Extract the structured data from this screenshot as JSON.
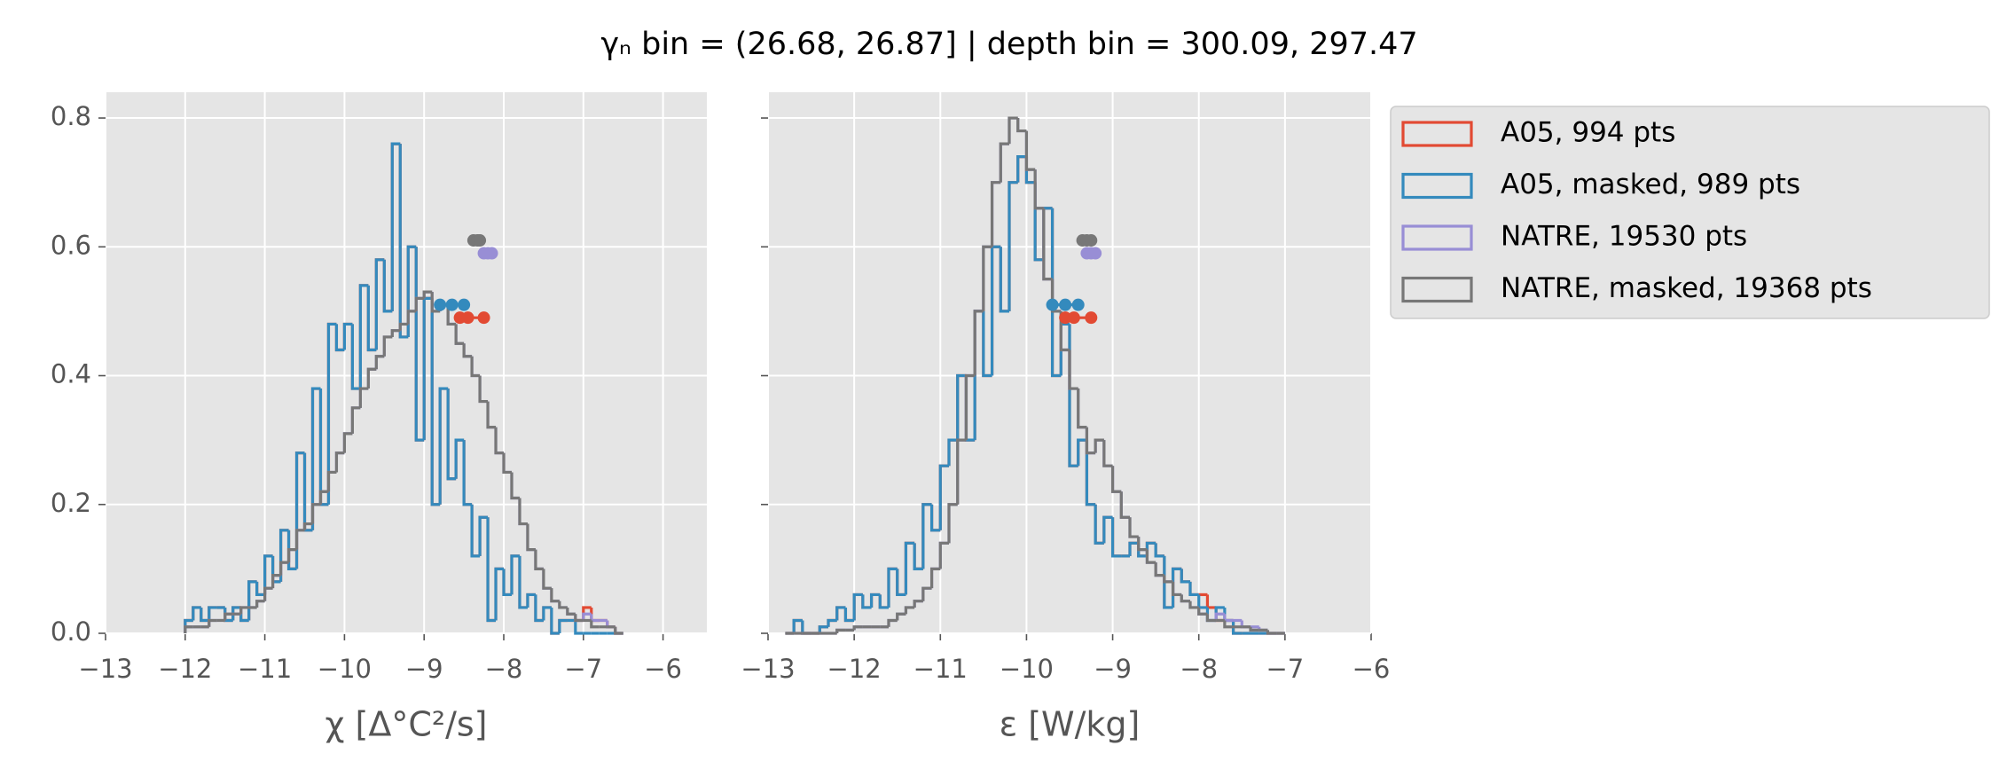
{
  "title": "γₙ bin = (26.68, 26.87] | depth bin = 300.09, 297.47",
  "chart_data": [
    {
      "type": "histogram",
      "x_label": "χ [Δ°C²/s]",
      "xlim": [
        -13,
        -5.45
      ],
      "ylim": [
        0,
        0.84
      ],
      "grid": true,
      "xticks": [
        {
          "value": -13,
          "label": "−13"
        },
        {
          "value": -12,
          "label": "−12"
        },
        {
          "value": -11,
          "label": "−11"
        },
        {
          "value": -10,
          "label": "−10"
        },
        {
          "value": -9,
          "label": "−9"
        },
        {
          "value": -8,
          "label": "−8"
        },
        {
          "value": -7,
          "label": "−7"
        },
        {
          "value": -6,
          "label": "−6"
        }
      ],
      "yticks": [
        {
          "value": 0,
          "label": "0.0"
        },
        0.2,
        0.4,
        0.6,
        0.8
      ],
      "bins": [
        -12.0,
        -11.9,
        -11.8,
        -11.7,
        -11.6,
        -11.5,
        -11.4,
        -11.3,
        -11.2,
        -11.1,
        -11.0,
        -10.9,
        -10.8,
        -10.7,
        -10.6,
        -10.5,
        -10.4,
        -10.3,
        -10.2,
        -10.1,
        -10.0,
        -9.9,
        -9.8,
        -9.7,
        -9.6,
        -9.5,
        -9.4,
        -9.3,
        -9.2,
        -9.1,
        -9.0,
        -8.9,
        -8.8,
        -8.7,
        -8.6,
        -8.5,
        -8.4,
        -8.3,
        -8.2,
        -8.1,
        -8.0,
        -7.9,
        -7.8,
        -7.7,
        -7.6,
        -7.5,
        -7.4,
        -7.3,
        -7.2,
        -7.1,
        -7.0,
        -6.9,
        -6.8,
        -6.7,
        -6.6,
        -6.5
      ],
      "series": [
        {
          "name": "A05, 994 pts",
          "color": "#E24A33",
          "quantile_y": 0.49,
          "quantile_x": [
            -8.55,
            -8.45,
            -8.25
          ],
          "values": [
            0.02,
            0.04,
            0.02,
            0.04,
            0.04,
            0.02,
            0.04,
            0.02,
            0.08,
            0.06,
            0.12,
            0.08,
            0.16,
            0.1,
            0.28,
            0.16,
            0.38,
            0.2,
            0.48,
            0.44,
            0.48,
            0.38,
            0.54,
            0.44,
            0.58,
            0.5,
            0.76,
            0.46,
            0.6,
            0.3,
            0.52,
            0.2,
            0.38,
            0.24,
            0.3,
            0.2,
            0.12,
            0.18,
            0.02,
            0.1,
            0.06,
            0.12,
            0.04,
            0.06,
            0.02,
            0.04,
            0,
            0.02,
            0.02,
            0.02,
            0.04,
            0.02,
            0.02,
            0.01,
            0
          ]
        },
        {
          "name": "A05, masked,  989 pts",
          "color": "#348ABD",
          "quantile_y": 0.51,
          "quantile_x": [
            -8.8,
            -8.65,
            -8.5
          ],
          "values": [
            0.02,
            0.04,
            0.02,
            0.04,
            0.04,
            0.02,
            0.04,
            0.02,
            0.08,
            0.06,
            0.12,
            0.08,
            0.16,
            0.1,
            0.28,
            0.16,
            0.38,
            0.2,
            0.48,
            0.44,
            0.48,
            0.38,
            0.54,
            0.44,
            0.58,
            0.5,
            0.76,
            0.46,
            0.6,
            0.3,
            0.52,
            0.2,
            0.38,
            0.24,
            0.3,
            0.2,
            0.12,
            0.18,
            0.02,
            0.1,
            0.06,
            0.12,
            0.04,
            0.06,
            0.02,
            0.04,
            0,
            0.02,
            0.02,
            0,
            0,
            0,
            0,
            0,
            0
          ]
        },
        {
          "name": "NATRE, 19530 pts",
          "color": "#988ED5",
          "quantile_y": 0.59,
          "quantile_x": [
            -8.25,
            -8.2,
            -8.15
          ],
          "values": [
            0.01,
            0.01,
            0.01,
            0.02,
            0.02,
            0.03,
            0.03,
            0.04,
            0.04,
            0.05,
            0.07,
            0.09,
            0.11,
            0.13,
            0.16,
            0.17,
            0.2,
            0.22,
            0.25,
            0.28,
            0.31,
            0.35,
            0.38,
            0.41,
            0.43,
            0.46,
            0.47,
            0.48,
            0.5,
            0.52,
            0.53,
            0.5,
            0.51,
            0.48,
            0.45,
            0.43,
            0.4,
            0.36,
            0.32,
            0.28,
            0.25,
            0.21,
            0.17,
            0.13,
            0.1,
            0.07,
            0.05,
            0.04,
            0.03,
            0.02,
            0.03,
            0.02,
            0.02,
            0.01,
            0
          ]
        },
        {
          "name": "NATRE, masked,  19368 pts",
          "color": "#777777",
          "quantile_y": 0.61,
          "quantile_x": [
            -8.38,
            -8.33,
            -8.3
          ],
          "values": [
            0.01,
            0.01,
            0.01,
            0.02,
            0.02,
            0.03,
            0.03,
            0.04,
            0.04,
            0.05,
            0.07,
            0.09,
            0.11,
            0.13,
            0.16,
            0.17,
            0.2,
            0.22,
            0.25,
            0.28,
            0.31,
            0.35,
            0.38,
            0.41,
            0.43,
            0.46,
            0.47,
            0.48,
            0.5,
            0.52,
            0.53,
            0.5,
            0.51,
            0.48,
            0.45,
            0.43,
            0.4,
            0.36,
            0.32,
            0.28,
            0.25,
            0.21,
            0.17,
            0.13,
            0.1,
            0.07,
            0.05,
            0.04,
            0.03,
            0.02,
            0.02,
            0.01,
            0.01,
            0.01,
            0
          ]
        }
      ]
    },
    {
      "type": "histogram",
      "x_label": "ε [W/kg]",
      "xlim": [
        -13,
        -6
      ],
      "ylim": [
        0,
        0.84
      ],
      "grid": true,
      "xticks": [
        {
          "value": -13,
          "label": "−13"
        },
        {
          "value": -12,
          "label": "−12"
        },
        {
          "value": -11,
          "label": "−11"
        },
        {
          "value": -10,
          "label": "−10"
        },
        {
          "value": -9,
          "label": "−9"
        },
        {
          "value": -8,
          "label": "−8"
        },
        {
          "value": -7,
          "label": "−7"
        },
        {
          "value": -6,
          "label": "−6"
        }
      ],
      "yticks": [
        0,
        0.2,
        0.4,
        0.6,
        0.8
      ],
      "bins": [
        -12.8,
        -12.7,
        -12.6,
        -12.5,
        -12.4,
        -12.3,
        -12.2,
        -12.1,
        -12.0,
        -11.9,
        -11.8,
        -11.7,
        -11.6,
        -11.5,
        -11.4,
        -11.3,
        -11.2,
        -11.1,
        -11.0,
        -10.9,
        -10.8,
        -10.7,
        -10.6,
        -10.5,
        -10.4,
        -10.3,
        -10.2,
        -10.1,
        -10.0,
        -9.9,
        -9.8,
        -9.7,
        -9.6,
        -9.5,
        -9.4,
        -9.3,
        -9.2,
        -9.1,
        -9.0,
        -8.9,
        -8.8,
        -8.7,
        -8.6,
        -8.5,
        -8.4,
        -8.3,
        -8.2,
        -8.1,
        -8.0,
        -7.9,
        -7.8,
        -7.7,
        -7.6,
        -7.5,
        -7.4,
        -7.3,
        -7.2,
        -7.1,
        -7.0
      ],
      "series": [
        {
          "color": "#E24A33",
          "quantile_y": 0.49,
          "quantile_x": [
            -9.55,
            -9.45,
            -9.25
          ],
          "values": [
            0,
            0.02,
            0,
            0,
            0.01,
            0.02,
            0.04,
            0.02,
            0.06,
            0.04,
            0.06,
            0.04,
            0.1,
            0.06,
            0.14,
            0.1,
            0.2,
            0.16,
            0.26,
            0.3,
            0.4,
            0.3,
            0.5,
            0.4,
            0.6,
            0.5,
            0.7,
            0.74,
            0.7,
            0.58,
            0.66,
            0.4,
            0.48,
            0.26,
            0.3,
            0.2,
            0.14,
            0.18,
            0.12,
            0.12,
            0.14,
            0.12,
            0.14,
            0.12,
            0.04,
            0.1,
            0.08,
            0.06,
            0.06,
            0.04,
            0.02,
            0.02,
            0,
            0,
            0,
            0,
            0,
            0
          ]
        },
        {
          "color": "#348ABD",
          "quantile_y": 0.51,
          "quantile_x": [
            -9.7,
            -9.55,
            -9.4
          ],
          "values": [
            0,
            0.02,
            0,
            0,
            0.01,
            0.02,
            0.04,
            0.02,
            0.06,
            0.04,
            0.06,
            0.04,
            0.1,
            0.06,
            0.14,
            0.1,
            0.2,
            0.16,
            0.26,
            0.3,
            0.4,
            0.3,
            0.5,
            0.4,
            0.6,
            0.5,
            0.7,
            0.74,
            0.7,
            0.58,
            0.66,
            0.4,
            0.48,
            0.26,
            0.3,
            0.2,
            0.14,
            0.18,
            0.12,
            0.12,
            0.14,
            0.12,
            0.14,
            0.12,
            0.04,
            0.1,
            0.08,
            0.06,
            0.04,
            0.02,
            0.04,
            0.02,
            0,
            0,
            0,
            0,
            0,
            0
          ]
        },
        {
          "color": "#988ED5",
          "quantile_y": 0.59,
          "quantile_x": [
            -9.3,
            -9.25,
            -9.2
          ],
          "values": [
            0,
            0,
            0,
            0,
            0,
            0,
            0.005,
            0.005,
            0.01,
            0.01,
            0.01,
            0.01,
            0.02,
            0.03,
            0.04,
            0.05,
            0.07,
            0.1,
            0.14,
            0.2,
            0.3,
            0.4,
            0.5,
            0.6,
            0.7,
            0.76,
            0.8,
            0.78,
            0.72,
            0.66,
            0.55,
            0.5,
            0.44,
            0.38,
            0.32,
            0.28,
            0.3,
            0.26,
            0.22,
            0.18,
            0.15,
            0.13,
            0.11,
            0.09,
            0.08,
            0.06,
            0.05,
            0.04,
            0.03,
            0.02,
            0.03,
            0.02,
            0.02,
            0.01,
            0.01,
            0.005,
            0,
            0
          ]
        },
        {
          "color": "#777777",
          "quantile_y": 0.61,
          "quantile_x": [
            -9.35,
            -9.3,
            -9.25
          ],
          "values": [
            0,
            0,
            0,
            0,
            0,
            0,
            0.005,
            0.005,
            0.01,
            0.01,
            0.01,
            0.01,
            0.02,
            0.03,
            0.04,
            0.05,
            0.07,
            0.1,
            0.14,
            0.2,
            0.3,
            0.4,
            0.5,
            0.6,
            0.7,
            0.76,
            0.8,
            0.78,
            0.72,
            0.66,
            0.55,
            0.5,
            0.44,
            0.38,
            0.32,
            0.28,
            0.3,
            0.26,
            0.22,
            0.18,
            0.15,
            0.13,
            0.11,
            0.09,
            0.08,
            0.06,
            0.05,
            0.04,
            0.03,
            0.02,
            0.02,
            0.01,
            0.01,
            0.01,
            0.005,
            0.005,
            0,
            0
          ]
        }
      ]
    }
  ]
}
